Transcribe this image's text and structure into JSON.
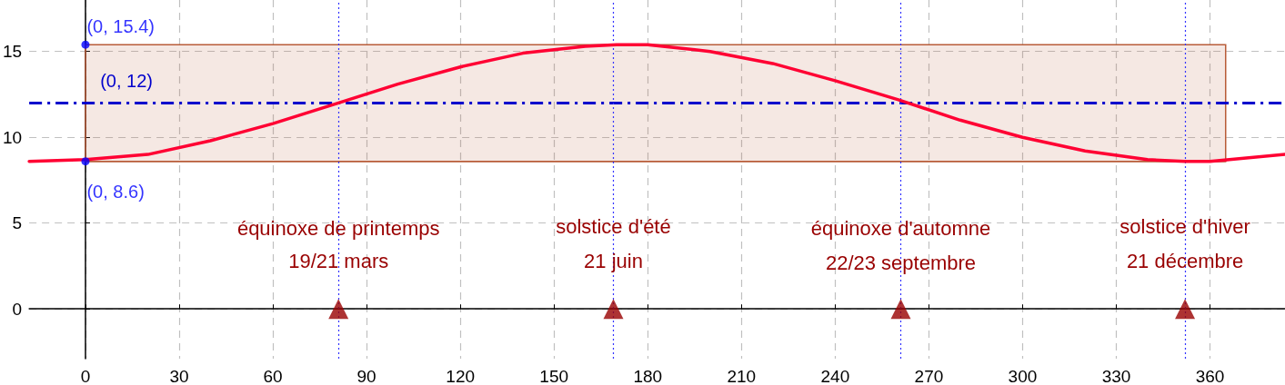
{
  "chart_data": {
    "type": "line",
    "xlim": [
      -18,
      384
    ],
    "ylim": [
      -2.9,
      18
    ],
    "xticks": [
      0,
      30,
      60,
      90,
      120,
      150,
      180,
      210,
      240,
      270,
      300,
      330,
      360
    ],
    "yticks": [
      0,
      5,
      10,
      15
    ],
    "grid": true,
    "marker": "none",
    "line_style": "solid",
    "series": [
      {
        "type": "line",
        "color": "#b85c38",
        "x": [
          0,
          365
        ],
        "values": [
          8.6,
          8.6
        ],
        "lower": [
          8.6,
          8.6
        ],
        "upper": [
          15.4,
          15.4
        ]
      },
      {
        "color": "#ff0033",
        "x": [
          -18,
          0,
          20,
          40,
          60,
          81,
          100,
          120,
          140,
          160,
          170,
          180,
          200,
          220,
          240,
          260,
          280,
          300,
          320,
          340,
          352,
          360,
          384
        ],
        "values": [
          8.6,
          8.7,
          9.0,
          9.8,
          10.8,
          12.0,
          13.1,
          14.1,
          14.9,
          15.3,
          15.4,
          15.4,
          15.0,
          14.3,
          13.3,
          12.2,
          11.0,
          10.0,
          9.2,
          8.7,
          8.6,
          8.6,
          9.0
        ]
      },
      {
        "type": "scatter",
        "color": "#0000ff",
        "x": [
          0,
          0
        ],
        "values": [
          15.4,
          8.6
        ],
        "value_labels": [
          "(0, 15.4)",
          "(0, 8.6)"
        ],
        "marker": "circle"
      },
      {
        "type": "scatter",
        "color": "#990000",
        "x": [
          81,
          169,
          261,
          352
        ],
        "values": [
          0,
          0,
          0,
          0
        ],
        "marker": "triangle"
      }
    ],
    "ref_lines": [
      {
        "axis": "y",
        "value": 12,
        "label": "(0, 12)",
        "color": "#0000cc",
        "line_style": "dashed"
      },
      {
        "axis": "x",
        "value": 81,
        "color": "#3333ff",
        "line_style": "dotted"
      },
      {
        "axis": "x",
        "value": 169,
        "color": "#3333ff",
        "line_style": "dotted"
      },
      {
        "axis": "x",
        "value": 261,
        "color": "#3333ff",
        "line_style": "dotted"
      },
      {
        "axis": "x",
        "value": 352,
        "color": "#3333ff",
        "line_style": "dotted"
      }
    ],
    "annotations": [
      {
        "text": "équinoxe de printemps",
        "x": 81,
        "y": 4.7
      },
      {
        "text": "19/21 mars",
        "x": 81,
        "y": 2.8
      },
      {
        "text": "solstice d'été",
        "x": 169,
        "y": 4.8
      },
      {
        "text": "21 juin",
        "x": 169,
        "y": 2.8
      },
      {
        "text": "équinoxe d'automne",
        "x": 261,
        "y": 4.7
      },
      {
        "text": "22/23 septembre",
        "x": 261,
        "y": 2.7
      },
      {
        "text": "solstice d'hiver",
        "x": 352,
        "y": 4.8
      },
      {
        "text": "21 décembre",
        "x": 352,
        "y": 2.8
      }
    ]
  }
}
